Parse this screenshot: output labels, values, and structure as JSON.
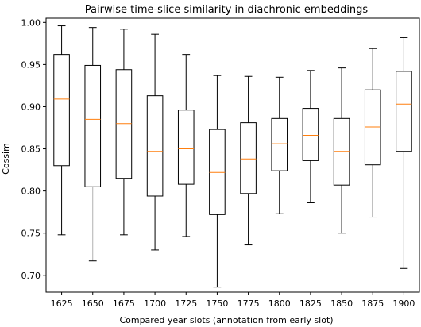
{
  "chart_data": {
    "type": "box",
    "title": "Pairwise time-slice similarity in diachronic embeddings",
    "xlabel": "Compared year slots (annotation from early slot)",
    "ylabel": "Cossim",
    "ylim": [
      0.68,
      1.005
    ],
    "yticks": [
      0.7,
      0.75,
      0.8,
      0.85,
      0.9,
      0.95,
      1.0
    ],
    "ytick_labels": [
      "0.70",
      "0.75",
      "0.80",
      "0.85",
      "0.90",
      "0.95",
      "1.00"
    ],
    "grid": false,
    "legend": "none",
    "colors": {
      "box": "#000000",
      "median": "#ff7f0e",
      "whisker": "#000000",
      "faded_whisker": "#b0b0b0"
    },
    "categories": [
      "1625",
      "1650",
      "1675",
      "1700",
      "1725",
      "1750",
      "1775",
      "1800",
      "1825",
      "1850",
      "1875",
      "1900"
    ],
    "boxes": [
      {
        "label": "1625",
        "whislo": 0.748,
        "q1": 0.83,
        "med": 0.909,
        "q3": 0.962,
        "whishi": 0.996
      },
      {
        "label": "1650",
        "whislo": 0.717,
        "q1": 0.805,
        "med": 0.885,
        "q3": 0.949,
        "whishi": 0.994,
        "lower_whisker_faded": true
      },
      {
        "label": "1675",
        "whislo": 0.748,
        "q1": 0.815,
        "med": 0.88,
        "q3": 0.944,
        "whishi": 0.992
      },
      {
        "label": "1700",
        "whislo": 0.73,
        "q1": 0.794,
        "med": 0.847,
        "q3": 0.913,
        "whishi": 0.986
      },
      {
        "label": "1725",
        "whislo": 0.746,
        "q1": 0.808,
        "med": 0.85,
        "q3": 0.896,
        "whishi": 0.962
      },
      {
        "label": "1750",
        "whislo": 0.686,
        "q1": 0.772,
        "med": 0.822,
        "q3": 0.873,
        "whishi": 0.937
      },
      {
        "label": "1775",
        "whislo": 0.736,
        "q1": 0.797,
        "med": 0.838,
        "q3": 0.881,
        "whishi": 0.936
      },
      {
        "label": "1800",
        "whislo": 0.773,
        "q1": 0.824,
        "med": 0.856,
        "q3": 0.886,
        "whishi": 0.935
      },
      {
        "label": "1825",
        "whislo": 0.786,
        "q1": 0.836,
        "med": 0.866,
        "q3": 0.898,
        "whishi": 0.943
      },
      {
        "label": "1850",
        "whislo": 0.75,
        "q1": 0.807,
        "med": 0.847,
        "q3": 0.886,
        "whishi": 0.946
      },
      {
        "label": "1875",
        "whislo": 0.769,
        "q1": 0.831,
        "med": 0.876,
        "q3": 0.92,
        "whishi": 0.969
      },
      {
        "label": "1900",
        "whislo": 0.708,
        "q1": 0.847,
        "med": 0.903,
        "q3": 0.942,
        "whishi": 0.982
      }
    ]
  }
}
